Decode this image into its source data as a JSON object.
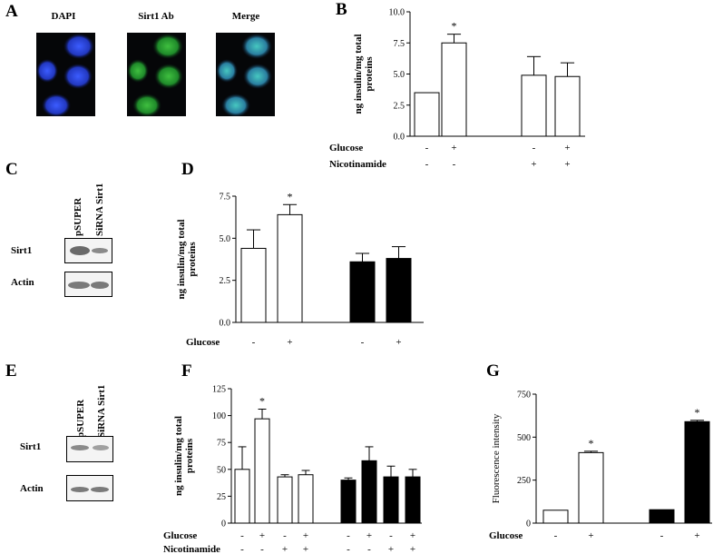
{
  "panels": {
    "A": "A",
    "B": "B",
    "C": "C",
    "D": "D",
    "E": "E",
    "F": "F",
    "G": "G"
  },
  "micrographs": {
    "dapi_label": "DAPI",
    "sirt1_label": "Sirt1 Ab",
    "merge_label": "Merge",
    "colors": {
      "dapi": "#2f49d6",
      "sirt1": "#39b53a",
      "merge": "#2aa4a0"
    }
  },
  "blot_C": {
    "lanes": [
      "pSUPER",
      "SiRNA Sirt1"
    ],
    "rows": [
      "Sirt1",
      "Actin"
    ]
  },
  "blot_E": {
    "lanes": [
      "pSUPER",
      "SiRNA Sirt1"
    ],
    "rows": [
      "Sirt1",
      "Actin"
    ]
  },
  "chart_data": [
    {
      "id": "B",
      "type": "bar",
      "ylabel": "ng insulin/mg total proteins",
      "ylim": [
        0,
        10
      ],
      "yticks": [
        "0.0",
        "2.5",
        "5.0",
        "7.5",
        "10.0"
      ],
      "row_labels": [
        "Glucose",
        "Nicotinamide"
      ],
      "groups": [
        {
          "bars": [
            {
              "value": 3.5,
              "error": 0,
              "fill": "white",
              "signs": [
                "-",
                "-"
              ],
              "star": false
            },
            {
              "value": 7.5,
              "error": 0.7,
              "fill": "white",
              "signs": [
                "+",
                "-"
              ],
              "star": true
            }
          ]
        },
        {
          "bars": [
            {
              "value": 4.9,
              "error": 1.5,
              "fill": "white",
              "signs": [
                "-",
                "+"
              ],
              "star": false
            },
            {
              "value": 4.8,
              "error": 1.1,
              "fill": "white",
              "signs": [
                "+",
                "+"
              ],
              "star": false
            }
          ]
        }
      ]
    },
    {
      "id": "D",
      "type": "bar",
      "ylabel": "ng insulin/mg total proteins",
      "ylim": [
        0,
        7.5
      ],
      "yticks": [
        "0.0",
        "2.5",
        "5.0",
        "7.5"
      ],
      "row_labels": [
        "Glucose"
      ],
      "groups": [
        {
          "bars": [
            {
              "value": 4.4,
              "error": 1.1,
              "fill": "white",
              "signs": [
                "-"
              ],
              "star": false
            },
            {
              "value": 6.4,
              "error": 0.6,
              "fill": "white",
              "signs": [
                "+"
              ],
              "star": true
            }
          ]
        },
        {
          "bars": [
            {
              "value": 3.6,
              "error": 0.5,
              "fill": "black",
              "signs": [
                "-"
              ],
              "star": false
            },
            {
              "value": 3.8,
              "error": 0.7,
              "fill": "black",
              "signs": [
                "+"
              ],
              "star": false
            }
          ]
        }
      ]
    },
    {
      "id": "F",
      "type": "bar",
      "ylabel": "ng insulin/mg total proteins",
      "ylim": [
        0,
        125
      ],
      "yticks": [
        "0",
        "25",
        "50",
        "75",
        "100",
        "125"
      ],
      "row_labels": [
        "Glucose",
        "Nicotinamide"
      ],
      "groups": [
        {
          "bars": [
            {
              "value": 50,
              "error": 21,
              "fill": "white",
              "signs": [
                "-",
                "-"
              ],
              "star": false
            },
            {
              "value": 97,
              "error": 9,
              "fill": "white",
              "signs": [
                "+",
                "-"
              ],
              "star": true
            },
            {
              "value": 43,
              "error": 2,
              "fill": "white",
              "signs": [
                "-",
                "+"
              ],
              "star": false
            },
            {
              "value": 45,
              "error": 4,
              "fill": "white",
              "signs": [
                "+",
                "+"
              ],
              "star": false
            }
          ]
        },
        {
          "bars": [
            {
              "value": 40,
              "error": 2,
              "fill": "black",
              "signs": [
                "-",
                "-"
              ],
              "star": false
            },
            {
              "value": 58,
              "error": 13,
              "fill": "black",
              "signs": [
                "+",
                "-"
              ],
              "star": false
            },
            {
              "value": 43,
              "error": 10,
              "fill": "black",
              "signs": [
                "-",
                "+"
              ],
              "star": false
            },
            {
              "value": 43,
              "error": 7,
              "fill": "black",
              "signs": [
                "+",
                "+"
              ],
              "star": false
            }
          ]
        }
      ]
    },
    {
      "id": "G",
      "type": "bar",
      "ylabel": "Fluorescence intensity",
      "ylim": [
        0,
        750
      ],
      "yticks": [
        "0",
        "250",
        "500",
        "750"
      ],
      "row_labels": [
        "Glucose"
      ],
      "groups": [
        {
          "bars": [
            {
              "value": 75,
              "error": 0,
              "fill": "white",
              "signs": [
                "-"
              ],
              "star": false
            },
            {
              "value": 410,
              "error": 8,
              "fill": "white",
              "signs": [
                "+"
              ],
              "star": true
            }
          ]
        },
        {
          "bars": [
            {
              "value": 78,
              "error": 0,
              "fill": "black",
              "signs": [
                "-"
              ],
              "star": false
            },
            {
              "value": 590,
              "error": 8,
              "fill": "black",
              "signs": [
                "+"
              ],
              "star": true
            }
          ]
        }
      ]
    }
  ]
}
